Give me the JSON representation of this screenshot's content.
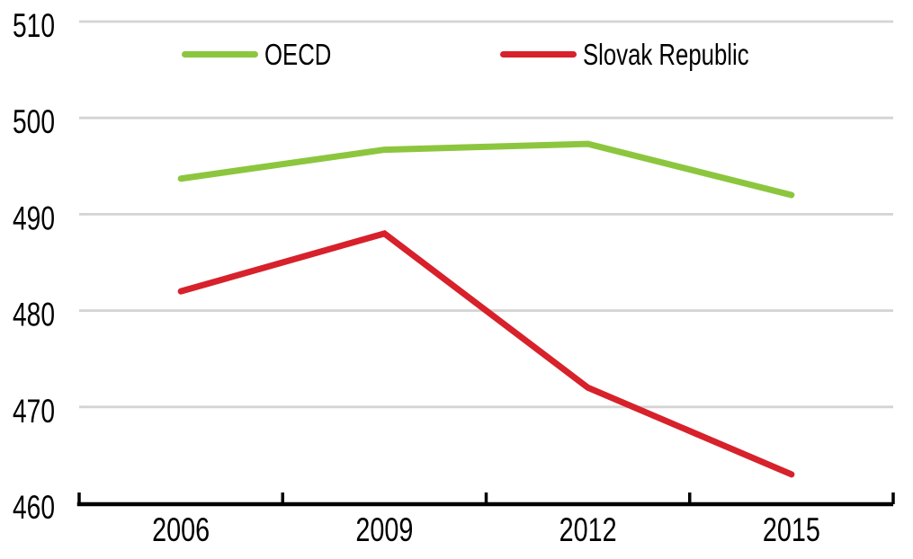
{
  "chart_data": {
    "type": "line",
    "title": "",
    "x": [
      "2006",
      "2009",
      "2012",
      "2015"
    ],
    "series": [
      {
        "name": "OECD",
        "color": "#8CC63E",
        "values": [
          493.7,
          496.7,
          497.3,
          492
        ]
      },
      {
        "name": "Slovak Republic",
        "color": "#D7212B",
        "values": [
          482,
          488,
          472,
          463
        ]
      }
    ],
    "ylim": [
      460,
      510
    ],
    "ytick_interval": 10,
    "xlabel": "",
    "ylabel": "",
    "grid": "horizontal",
    "legend_position": "top-inside"
  },
  "axes": {
    "y_tick_labels": [
      "510",
      "500",
      "490",
      "480",
      "470",
      "460"
    ],
    "x_tick_labels": [
      "2006",
      "2009",
      "2012",
      "2015"
    ]
  },
  "legend": {
    "items": [
      {
        "label": "OECD"
      },
      {
        "label": "Slovak Republic"
      }
    ]
  },
  "colors": {
    "background": "#FFFFFF",
    "gridline": "#D4D4D4",
    "axis": "#000000",
    "text": "#000000",
    "oecd_line": "#8CC63E",
    "slovak_line": "#D7212B"
  }
}
